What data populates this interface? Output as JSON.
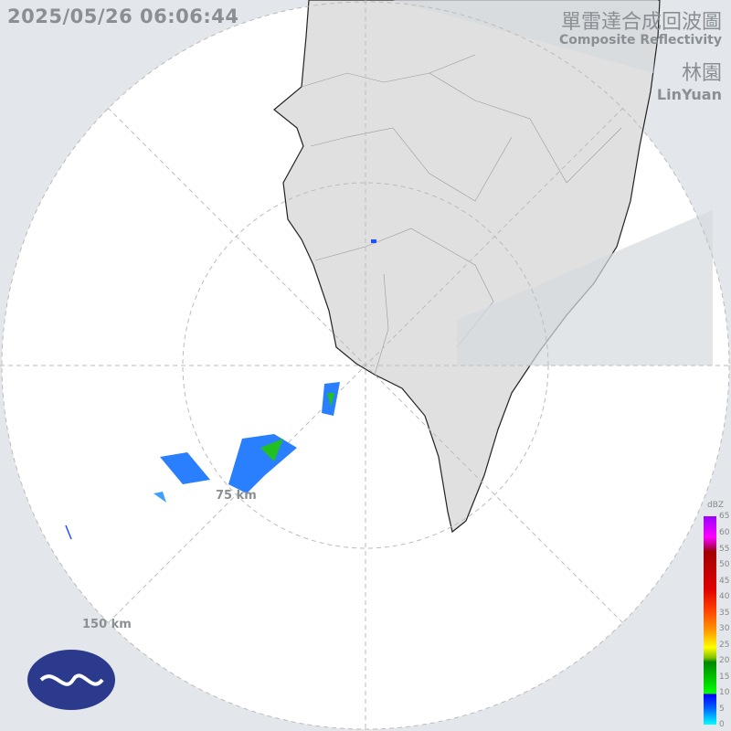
{
  "timestamp": "2025/05/26 06:06:44",
  "title": {
    "zh": "單雷達合成回波圖",
    "en": "Composite Reflectivity"
  },
  "station": {
    "zh": "林園",
    "en": "LinYuan"
  },
  "range_labels": [
    "75 km",
    "150 km"
  ],
  "legend": {
    "unit": "dBZ",
    "ticks": [
      "65",
      "60",
      "55",
      "50",
      "45",
      "40",
      "35",
      "30",
      "25",
      "20",
      "15",
      "10",
      "5",
      "0"
    ]
  },
  "colors": {
    "background": "#e3e7eb",
    "radar_area": "#ffffff",
    "land": "#e0e0e0",
    "logo": "#2b3a8c"
  },
  "icons": {
    "logo": "cwa-logo"
  }
}
